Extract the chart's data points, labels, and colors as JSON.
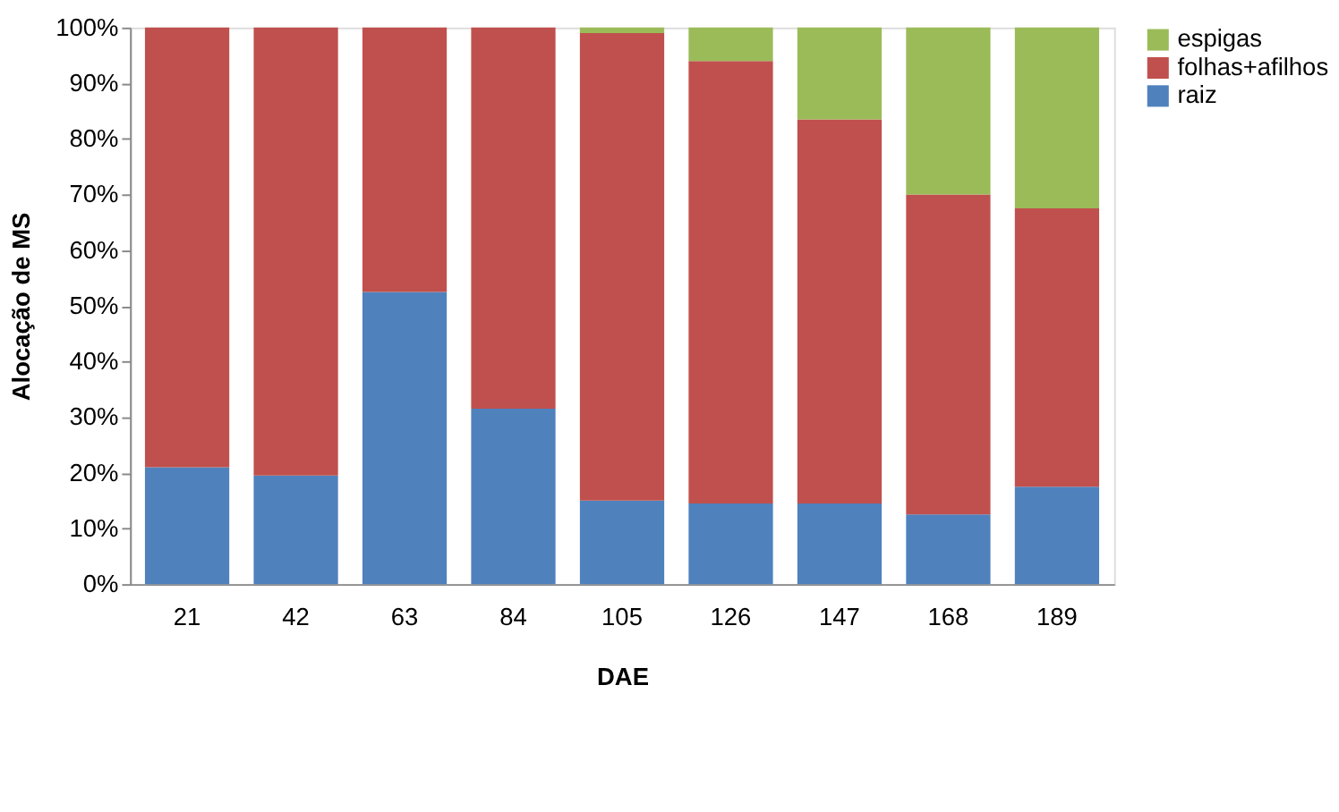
{
  "chart_data": {
    "type": "bar",
    "stacked": true,
    "xlabel": "DAE",
    "ylabel": "Alocação de MS",
    "categories": [
      "21",
      "42",
      "63",
      "84",
      "105",
      "126",
      "147",
      "168",
      "189"
    ],
    "series": [
      {
        "name": "raiz",
        "color": "#4f81bd",
        "values": [
          21,
          19.5,
          52.5,
          31.5,
          15,
          14.5,
          14.5,
          12.5,
          17.5
        ]
      },
      {
        "name": "folhas+afilhos",
        "color": "#c0504d",
        "values": [
          79,
          80.5,
          47.5,
          68.5,
          84,
          79.5,
          69,
          57.5,
          50
        ]
      },
      {
        "name": "espigas",
        "color": "#9bbb59",
        "values": [
          0,
          0,
          0,
          0,
          1,
          6,
          16.5,
          30,
          32.5
        ]
      }
    ],
    "ylim": [
      0,
      100
    ],
    "yticks": [
      {
        "value": 0,
        "label": "0%"
      },
      {
        "value": 10,
        "label": "10%"
      },
      {
        "value": 20,
        "label": "20%"
      },
      {
        "value": 30,
        "label": "30%"
      },
      {
        "value": 40,
        "label": "40%"
      },
      {
        "value": 50,
        "label": "50%"
      },
      {
        "value": 60,
        "label": "60%"
      },
      {
        "value": 70,
        "label": "70%"
      },
      {
        "value": 80,
        "label": "80%"
      },
      {
        "value": 90,
        "label": "90%"
      },
      {
        "value": 100,
        "label": "100%"
      }
    ],
    "grid": false,
    "legend": "right"
  }
}
